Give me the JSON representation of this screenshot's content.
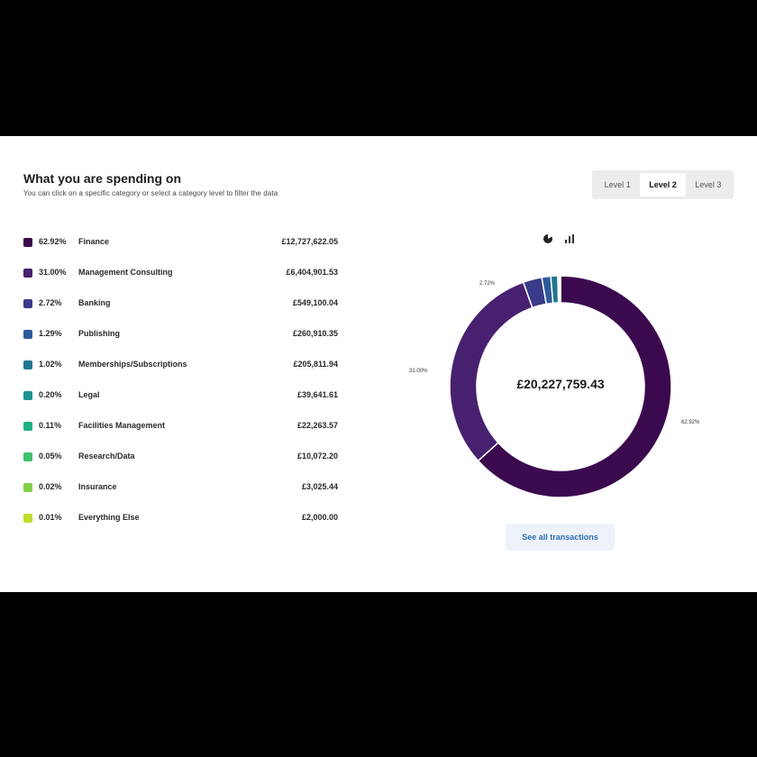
{
  "header": {
    "title": "What you are spending on",
    "subtitle": "You can click on a specific category or select a category level to filter the data"
  },
  "levels": [
    "Level 1",
    "Level 2",
    "Level 3"
  ],
  "active_level": "Level 2",
  "toolbar": {
    "icons": [
      "pie-icon",
      "bar-chart-icon"
    ]
  },
  "legend": [
    {
      "pct": "62.92%",
      "label": "Finance",
      "amount": "£12,727,622.05",
      "color": "#3b0a4e"
    },
    {
      "pct": "31.00%",
      "label": "Management Consulting",
      "amount": "£6,404,901.53",
      "color": "#47216f"
    },
    {
      "pct": "2.72%",
      "label": "Banking",
      "amount": "£549,100.04",
      "color": "#3a3a8a"
    },
    {
      "pct": "1.29%",
      "label": "Publishing",
      "amount": "£260,910.35",
      "color": "#2d5a9a"
    },
    {
      "pct": "1.02%",
      "label": "Memberships/Subscriptions",
      "amount": "£205,811.94",
      "color": "#22778f"
    },
    {
      "pct": "0.20%",
      "label": "Legal",
      "amount": "£39,641.61",
      "color": "#1d9490"
    },
    {
      "pct": "0.11%",
      "label": "Facilities Management",
      "amount": "£22,263.57",
      "color": "#1fb083"
    },
    {
      "pct": "0.05%",
      "label": "Research/Data",
      "amount": "£10,072.20",
      "color": "#40c16b"
    },
    {
      "pct": "0.02%",
      "label": "Insurance",
      "amount": "£3,025.44",
      "color": "#7fcf49"
    },
    {
      "pct": "0.01%",
      "label": "Everything Else",
      "amount": "£2,000.00",
      "color": "#c1dd2e"
    }
  ],
  "chart_data": {
    "type": "pie",
    "style": "donut",
    "center_label": "£20,227,759.43",
    "categories": [
      "Finance",
      "Management Consulting",
      "Banking",
      "Publishing",
      "Memberships/Subscriptions",
      "Legal",
      "Facilities Management",
      "Research/Data",
      "Insurance",
      "Everything Else"
    ],
    "values": [
      62.92,
      31.0,
      2.72,
      1.29,
      1.02,
      0.2,
      0.11,
      0.05,
      0.02,
      0.01
    ],
    "colors": [
      "#3b0a4e",
      "#47216f",
      "#3a3a8a",
      "#2d5a9a",
      "#22778f",
      "#1d9490",
      "#1fb083",
      "#40c16b",
      "#7fcf49",
      "#c1dd2e"
    ],
    "slice_labels": [
      {
        "category": "Finance",
        "text": "62.92%"
      },
      {
        "category": "Management Consulting",
        "text": "31.00%"
      },
      {
        "category": "Banking",
        "text": "2.72%"
      }
    ]
  },
  "see_all_label": "See all transactions"
}
